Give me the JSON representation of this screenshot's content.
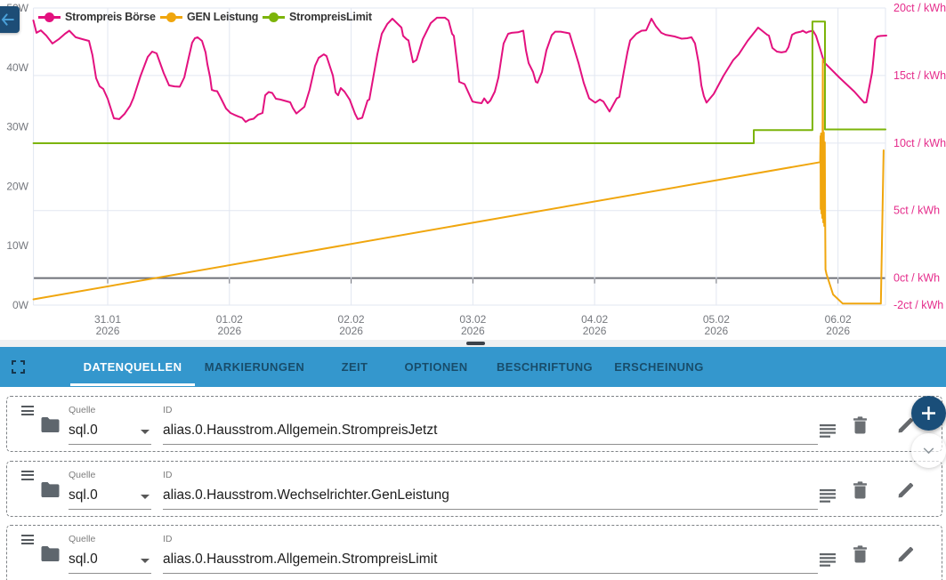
{
  "window": {
    "back_button": "back"
  },
  "chart_data": {
    "type": "line",
    "title": "",
    "legend": [
      {
        "label": "Strompreis Börse",
        "color": "#e3117f"
      },
      {
        "label": "GEN Leistung",
        "color": "#f0a60e"
      },
      {
        "label": "StrompreisLimit",
        "color": "#7cb40a"
      }
    ],
    "x_axis": {
      "unit": "days since 30.01.2026 00:00",
      "min": 0.39,
      "max": 7.39,
      "ticks": [
        {
          "v": 1,
          "label": "31.01",
          "year": "2026"
        },
        {
          "v": 2,
          "label": "01.02",
          "year": "2026"
        },
        {
          "v": 3,
          "label": "02.02",
          "year": "2026"
        },
        {
          "v": 4,
          "label": "03.02",
          "year": "2026"
        },
        {
          "v": 5,
          "label": "04.02",
          "year": "2026"
        },
        {
          "v": 6,
          "label": "05.02",
          "year": "2026"
        },
        {
          "v": 7,
          "label": "06.02",
          "year": "2026"
        }
      ]
    },
    "y_axis_left": {
      "unit": "W",
      "min": 0.0,
      "max": 50.0,
      "ticks": [
        {
          "v": 0,
          "label": "0W"
        },
        {
          "v": 10,
          "label": "10W"
        },
        {
          "v": 20,
          "label": "20W"
        },
        {
          "v": 30,
          "label": "30W"
        },
        {
          "v": 40,
          "label": "40W"
        },
        {
          "v": 50,
          "label": "50W"
        }
      ]
    },
    "y_axis_right": {
      "unit": "ct / kWh",
      "min": -2.0,
      "max": 20.0,
      "ticks": [
        {
          "v": -2,
          "label": "-2ct / kWh"
        },
        {
          "v": 0,
          "label": "0ct / kWh"
        },
        {
          "v": 5,
          "label": "5ct / kWh"
        },
        {
          "v": 10,
          "label": "10ct / kWh"
        },
        {
          "v": 15,
          "label": "15ct / kWh"
        },
        {
          "v": 20,
          "label": "20ct / kWh"
        }
      ],
      "zero_axis_line": true
    },
    "series": [
      {
        "name": "Strompreis Börse",
        "color": "#e3117f",
        "y_axis": "right",
        "points": [
          [
            0.389,
            19.08
          ],
          [
            0.415,
            18.16
          ],
          [
            0.451,
            18.35
          ],
          [
            0.495,
            17.96
          ],
          [
            0.546,
            17.37
          ],
          [
            0.598,
            17.69
          ],
          [
            0.649,
            18.09
          ],
          [
            0.685,
            18.32
          ],
          [
            0.737,
            17.83
          ],
          [
            0.795,
            17.69
          ],
          [
            0.846,
            17.56
          ],
          [
            0.875,
            16.51
          ],
          [
            0.905,
            14.8
          ],
          [
            0.934,
            14.2
          ],
          [
            0.963,
            14.01
          ],
          [
            1.0,
            13.28
          ],
          [
            1.051,
            11.83
          ],
          [
            1.095,
            11.77
          ],
          [
            1.139,
            12.16
          ],
          [
            1.183,
            12.75
          ],
          [
            1.212,
            13.35
          ],
          [
            1.27,
            14.99
          ],
          [
            1.329,
            16.38
          ],
          [
            1.365,
            16.77
          ],
          [
            1.402,
            16.64
          ],
          [
            1.46,
            15.19
          ],
          [
            1.504,
            14.27
          ],
          [
            1.548,
            14.2
          ],
          [
            1.592,
            14.17
          ],
          [
            1.629,
            14.86
          ],
          [
            1.665,
            16.31
          ],
          [
            1.694,
            17.43
          ],
          [
            1.716,
            17.76
          ],
          [
            1.738,
            17.83
          ],
          [
            1.775,
            17.56
          ],
          [
            1.804,
            16.71
          ],
          [
            1.819,
            15.85
          ],
          [
            1.841,
            14.86
          ],
          [
            1.855,
            13.94
          ],
          [
            1.877,
            13.87
          ],
          [
            1.899,
            13.84
          ],
          [
            1.928,
            13.35
          ],
          [
            1.972,
            12.56
          ],
          [
            2.009,
            12.23
          ],
          [
            2.038,
            12.1
          ],
          [
            2.075,
            11.96
          ],
          [
            2.104,
            11.87
          ],
          [
            2.133,
            11.57
          ],
          [
            2.162,
            11.73
          ],
          [
            2.199,
            11.8
          ],
          [
            2.235,
            12.1
          ],
          [
            2.272,
            12.23
          ],
          [
            2.294,
            13.54
          ],
          [
            2.323,
            13.78
          ],
          [
            2.352,
            13.71
          ],
          [
            2.382,
            13.28
          ],
          [
            2.418,
            13.22
          ],
          [
            2.499,
            13.02
          ],
          [
            2.521,
            12.59
          ],
          [
            2.55,
            12.19
          ],
          [
            2.616,
            12.69
          ],
          [
            2.659,
            13.94
          ],
          [
            2.703,
            15.72
          ],
          [
            2.733,
            16.31
          ],
          [
            2.776,
            16.57
          ],
          [
            2.798,
            16.44
          ],
          [
            2.85,
            14.99
          ],
          [
            2.872,
            13.74
          ],
          [
            2.893,
            13.54
          ],
          [
            2.915,
            14.07
          ],
          [
            2.945,
            13.81
          ],
          [
            2.988,
            13.22
          ],
          [
            3.032,
            12.16
          ],
          [
            3.054,
            11.77
          ],
          [
            3.091,
            11.87
          ],
          [
            3.135,
            13.15
          ],
          [
            3.149,
            13.22
          ],
          [
            3.215,
            16.57
          ],
          [
            3.252,
            18.09
          ],
          [
            3.296,
            18.81
          ],
          [
            3.339,
            19.21
          ],
          [
            3.413,
            18.55
          ],
          [
            3.427,
            17.93
          ],
          [
            3.456,
            17.69
          ],
          [
            3.471,
            17.6
          ],
          [
            3.508,
            15.98
          ],
          [
            3.537,
            16.15
          ],
          [
            3.588,
            17.69
          ],
          [
            3.654,
            18.88
          ],
          [
            3.705,
            19.28
          ],
          [
            3.771,
            19.28
          ],
          [
            3.8,
            19.08
          ],
          [
            3.829,
            18.09
          ],
          [
            3.844,
            17.93
          ],
          [
            3.88,
            15.26
          ],
          [
            3.888,
            14.53
          ],
          [
            3.932,
            14.37
          ],
          [
            3.997,
            13.08
          ],
          [
            4.034,
            13.0
          ],
          [
            4.071,
            12.95
          ],
          [
            4.093,
            13.31
          ],
          [
            4.122,
            12.95
          ],
          [
            4.144,
            13.15
          ],
          [
            4.18,
            13.81
          ],
          [
            4.21,
            14.86
          ],
          [
            4.239,
            16.57
          ],
          [
            4.253,
            17.37
          ],
          [
            4.29,
            18.09
          ],
          [
            4.319,
            18.16
          ],
          [
            4.37,
            18.2
          ],
          [
            4.414,
            18.32
          ],
          [
            4.436,
            16.87
          ],
          [
            4.458,
            15.92
          ],
          [
            4.495,
            15.26
          ],
          [
            4.517,
            14.53
          ],
          [
            4.531,
            14.47
          ],
          [
            4.568,
            15.26
          ],
          [
            4.604,
            16.87
          ],
          [
            4.648,
            17.99
          ],
          [
            4.677,
            18.25
          ],
          [
            4.721,
            18.25
          ],
          [
            4.794,
            18.12
          ],
          [
            4.868,
            15.92
          ],
          [
            4.911,
            14.47
          ],
          [
            4.955,
            13.31
          ],
          [
            5.006,
            12.99
          ],
          [
            5.043,
            13.22
          ],
          [
            5.072,
            13.08
          ],
          [
            5.123,
            12.33
          ],
          [
            5.182,
            13.31
          ],
          [
            5.204,
            13.41
          ],
          [
            5.24,
            15.26
          ],
          [
            5.27,
            16.71
          ],
          [
            5.292,
            17.6
          ],
          [
            5.343,
            18.09
          ],
          [
            5.387,
            18.32
          ],
          [
            5.423,
            18.35
          ],
          [
            5.431,
            18.49
          ],
          [
            5.467,
            19.21
          ],
          [
            5.504,
            18.65
          ],
          [
            5.548,
            18.16
          ],
          [
            5.584,
            18.02
          ],
          [
            5.657,
            17.89
          ],
          [
            5.716,
            17.73
          ],
          [
            5.76,
            17.76
          ],
          [
            5.796,
            17.83
          ],
          [
            5.825,
            17.37
          ],
          [
            5.855,
            15.92
          ],
          [
            5.877,
            14.27
          ],
          [
            5.898,
            13.48
          ],
          [
            5.92,
            12.99
          ],
          [
            5.979,
            13.64
          ],
          [
            6.059,
            14.99
          ],
          [
            6.14,
            16.15
          ],
          [
            6.184,
            16.57
          ],
          [
            6.257,
            17.56
          ],
          [
            6.344,
            18.55
          ],
          [
            6.418,
            18.02
          ],
          [
            6.432,
            17.96
          ],
          [
            6.461,
            17.04
          ],
          [
            6.498,
            16.77
          ],
          [
            6.535,
            16.71
          ],
          [
            6.571,
            16.77
          ],
          [
            6.593,
            17.1
          ],
          [
            6.622,
            18.02
          ],
          [
            6.652,
            18.16
          ],
          [
            6.695,
            18.25
          ],
          [
            6.71,
            18.32
          ],
          [
            6.739,
            18.16
          ],
          [
            6.758,
            18.25
          ],
          [
            6.794,
            18.32
          ],
          [
            6.82,
            17.93
          ],
          [
            6.856,
            16.87
          ],
          [
            6.886,
            15.98
          ],
          [
            6.893,
            15.92
          ],
          [
            7.01,
            14.86
          ],
          [
            7.134,
            13.81
          ],
          [
            7.215,
            12.99
          ],
          [
            7.233,
            13.02
          ],
          [
            7.28,
            15.26
          ],
          [
            7.295,
            16.57
          ],
          [
            7.306,
            17.69
          ],
          [
            7.324,
            17.89
          ],
          [
            7.35,
            17.93
          ],
          [
            7.397,
            17.96
          ]
        ]
      },
      {
        "name": "GEN Leistung",
        "color": "#f0a60e",
        "y_axis": "left",
        "points": [
          [
            0.39,
            0.97
          ],
          [
            6.853,
            24.06
          ],
          [
            6.856,
            28.44
          ],
          [
            6.858,
            16.17
          ],
          [
            6.861,
            28.89
          ],
          [
            6.864,
            15.42
          ],
          [
            6.867,
            28.59
          ],
          [
            6.871,
            14.67
          ],
          [
            6.875,
            41.33
          ],
          [
            6.879,
            13.92
          ],
          [
            6.883,
            29.04
          ],
          [
            6.887,
            13.32
          ],
          [
            6.891,
            27.4
          ],
          [
            6.894,
            14.82
          ],
          [
            6.897,
            5.99
          ],
          [
            6.905,
            5.24
          ],
          [
            6.959,
            1.8
          ],
          [
            7.039,
            0.25
          ],
          [
            7.352,
            0.25
          ],
          [
            7.375,
            26.05
          ]
        ]
      },
      {
        "name": "StrompreisLimit",
        "color": "#7cb40a",
        "y_axis": "right",
        "points": [
          [
            0.39,
            9.99
          ],
          [
            6.308,
            9.99
          ],
          [
            6.308,
            10.96
          ],
          [
            6.79,
            10.96
          ],
          [
            6.79,
            18.99
          ],
          [
            6.893,
            18.99
          ],
          [
            6.893,
            11.01
          ],
          [
            7.39,
            11.01
          ]
        ]
      }
    ]
  },
  "toolbar": {
    "tabs": [
      {
        "label": "DATENQUELLEN",
        "active": true
      },
      {
        "label": "MARKIERUNGEN",
        "active": false
      },
      {
        "label": "ZEIT",
        "active": false
      },
      {
        "label": "OPTIONEN",
        "active": false
      },
      {
        "label": "BESCHRIFTUNG",
        "active": false
      },
      {
        "label": "ERSCHEINUNG",
        "active": false
      }
    ]
  },
  "datasources": {
    "rows": [
      {
        "quelle_label": "Quelle",
        "quelle_value": "sql.0",
        "id_label": "ID",
        "id_value": "alias.0.Hausstrom.Allgemein.StrompreisJetzt"
      },
      {
        "quelle_label": "Quelle",
        "quelle_value": "sql.0",
        "id_label": "ID",
        "id_value": "alias.0.Hausstrom.Wechselrichter.GenLeistung"
      },
      {
        "quelle_label": "Quelle",
        "quelle_value": "sql.0",
        "id_label": "ID",
        "id_value": "alias.0.Hausstrom.Allgemein.StrompreisLimit"
      }
    ],
    "add_button_label": "+"
  },
  "colors": {
    "toolbar_blue": "#3497cd",
    "accent_navy": "#1b4d78",
    "grid": "#e2e7f1",
    "axis_dark": "#6e7079",
    "axis_label_gray": "#75787e",
    "right_axis_label": "#e52d8c"
  }
}
